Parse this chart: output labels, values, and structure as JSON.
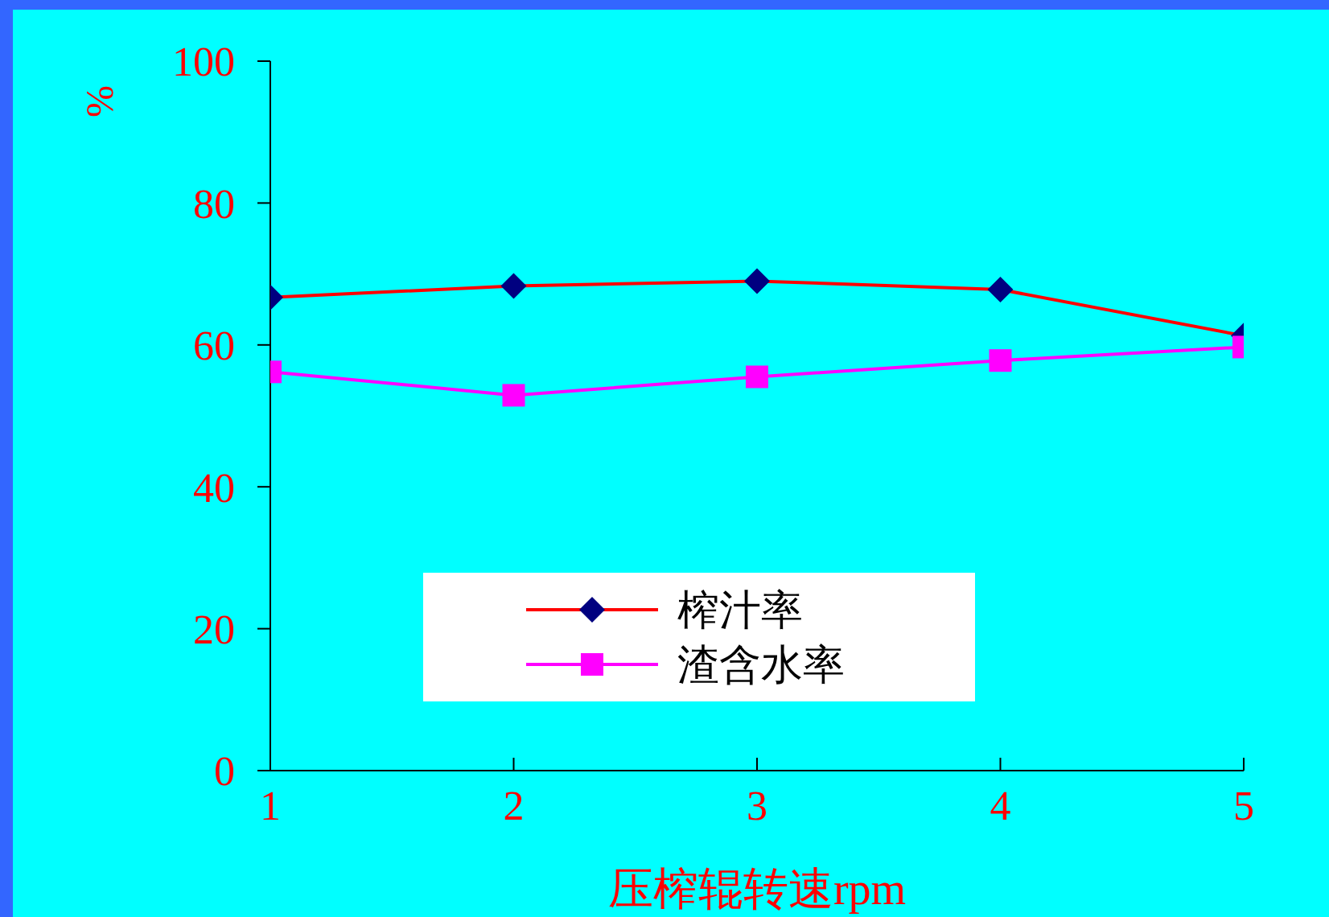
{
  "chart_data": {
    "type": "line",
    "xlabel": "压榨辊转速rpm",
    "ylabel": "%",
    "x": [
      1,
      2,
      3,
      4,
      5
    ],
    "xlim": [
      1,
      5
    ],
    "xticks": [
      1,
      2,
      3,
      4,
      5
    ],
    "ylim": [
      0,
      100
    ],
    "yticks": [
      0,
      20,
      40,
      60,
      80,
      100
    ],
    "grid": false,
    "legend": "bottom",
    "line_style": "solid",
    "series": [
      {
        "name": "榨汁率",
        "color": "#ff0000",
        "colors": [
          "#000080",
          "#000080",
          "#000080",
          "#000080",
          "#000080"
        ],
        "marker": "diamond",
        "values": [
          66.7,
          68.3,
          69.0,
          67.8,
          61.3
        ]
      },
      {
        "name": "渣含水率",
        "color": "#ff00ff",
        "colors": [
          "#ff00ff",
          "#ff00ff",
          "#ff00ff",
          "#ff00ff",
          "#ff00ff"
        ],
        "marker": "square",
        "values": [
          56.2,
          52.9,
          55.5,
          57.8,
          59.7
        ]
      }
    ]
  }
}
